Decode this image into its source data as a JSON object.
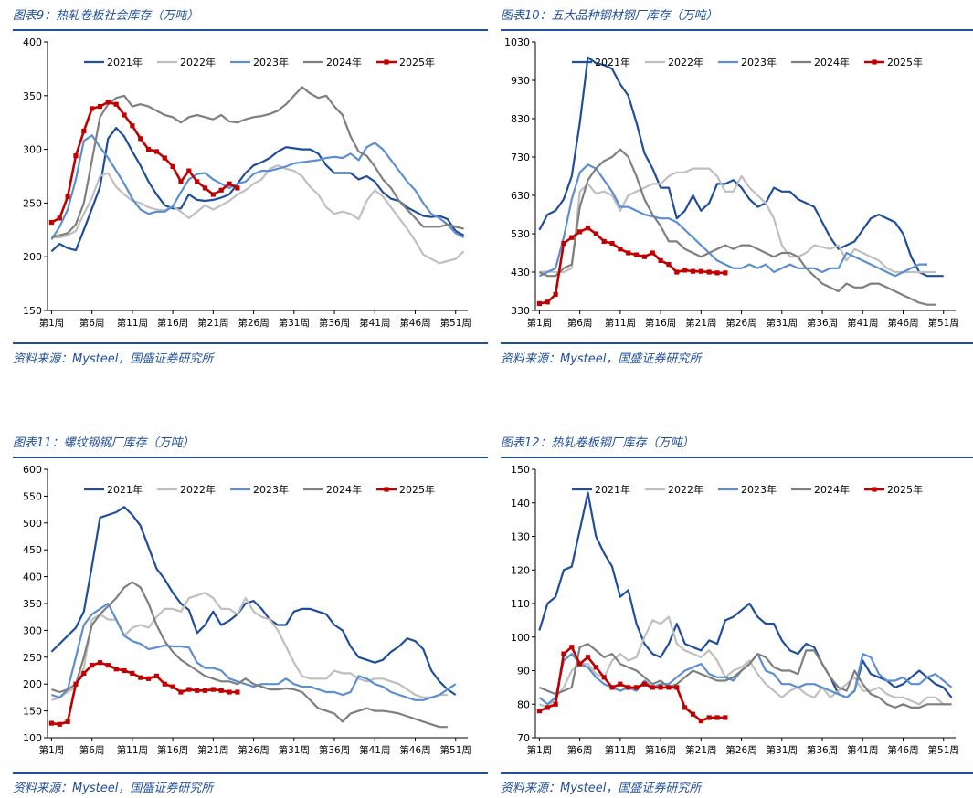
{
  "panels": [
    {
      "title": "图表9：热轧卷板社会库存（万吨）",
      "source": "资料来源：Mysteel，国盛证券研究所"
    },
    {
      "title": "图表10：五大品种钢材钢厂库存（万吨）",
      "source": "资料来源：Mysteel，国盛证券研究所"
    },
    {
      "title": "图表11：螺纹钢钢厂库存（万吨）",
      "source": "资料来源：Mysteel，国盛证券研究所"
    },
    {
      "title": "图表12：热轧卷板钢厂库存（万吨）",
      "source": "资料来源：Mysteel，国盛证券研究所"
    }
  ],
  "colors": {
    "y2021": "#1f4e9a",
    "y2022": "#bfbfbf",
    "y2023": "#5b8fd0",
    "y2024": "#7f7f7f",
    "y2025": "#c00000",
    "title": "#1f4e9a"
  },
  "chart_data": [
    {
      "type": "line",
      "title": "图表9：热轧卷板社会库存（万吨）",
      "x_tick_labels": [
        "第1周",
        "第6周",
        "第11周",
        "第16周",
        "第21周",
        "第26周",
        "第31周",
        "第36周",
        "第41周",
        "第46周",
        "第51周"
      ],
      "ylim": [
        150,
        400
      ],
      "yticks": [
        150,
        200,
        250,
        300,
        350,
        400
      ],
      "legend": "top",
      "series": [
        {
          "name": "2021年",
          "values": [
            205,
            212,
            208,
            206,
            225,
            245,
            265,
            310,
            320,
            312,
            298,
            285,
            270,
            258,
            248,
            245,
            245,
            258,
            253,
            252,
            253,
            255,
            258,
            268,
            278,
            285,
            288,
            292,
            298,
            302,
            301,
            300,
            300,
            296,
            285,
            278,
            278,
            278,
            272,
            275,
            270,
            260,
            254,
            252,
            246,
            242,
            238,
            237,
            238,
            235,
            224,
            220
          ]
        },
        {
          "name": "2022年",
          "values": [
            218,
            218,
            220,
            224,
            240,
            255,
            275,
            278,
            265,
            258,
            252,
            250,
            246,
            244,
            243,
            247,
            242,
            236,
            242,
            248,
            244,
            248,
            252,
            258,
            262,
            268,
            272,
            282,
            285,
            282,
            280,
            275,
            265,
            258,
            246,
            240,
            242,
            240,
            235,
            252,
            262,
            256,
            246,
            236,
            226,
            215,
            202,
            198,
            194,
            196,
            198,
            205
          ]
        },
        {
          "name": "2023年",
          "values": [
            216,
            228,
            244,
            272,
            308,
            313,
            302,
            292,
            280,
            268,
            254,
            244,
            240,
            242,
            242,
            247,
            260,
            272,
            277,
            278,
            272,
            268,
            264,
            268,
            270,
            277,
            280,
            280,
            282,
            284,
            287,
            288,
            289,
            290,
            292,
            293,
            292,
            296,
            290,
            302,
            306,
            300,
            290,
            280,
            270,
            262,
            250,
            240,
            236,
            230,
            222,
            218
          ]
        },
        {
          "name": "2024年",
          "values": [
            218,
            220,
            222,
            230,
            250,
            290,
            330,
            342,
            348,
            350,
            340,
            342,
            340,
            336,
            332,
            330,
            325,
            330,
            332,
            330,
            328,
            332,
            326,
            325,
            328,
            330,
            331,
            333,
            336,
            342,
            350,
            358,
            352,
            348,
            350,
            340,
            332,
            312,
            298,
            294,
            284,
            272,
            264,
            252,
            244,
            236,
            228,
            228,
            228,
            230,
            228,
            226
          ]
        },
        {
          "name": "2025年",
          "values": [
            232,
            236,
            256,
            294,
            317,
            338,
            340,
            344,
            342,
            332,
            322,
            310,
            300,
            298,
            292,
            284,
            270,
            280,
            270,
            264,
            258,
            262,
            268,
            264
          ]
        }
      ]
    },
    {
      "type": "line",
      "title": "图表10：五大品种钢材钢厂库存（万吨）",
      "x_tick_labels": [
        "第1周",
        "第6周",
        "第11周",
        "第16周",
        "第21周",
        "第26周",
        "第31周",
        "第36周",
        "第41周",
        "第46周",
        "第51周"
      ],
      "ylim": [
        330,
        1030
      ],
      "yticks": [
        330,
        430,
        530,
        630,
        730,
        830,
        930,
        1030
      ],
      "legend": "top",
      "series": [
        {
          "name": "2021年",
          "values": [
            540,
            580,
            590,
            620,
            680,
            820,
            990,
            975,
            970,
            960,
            920,
            890,
            820,
            740,
            700,
            650,
            650,
            570,
            590,
            630,
            590,
            610,
            660,
            660,
            670,
            650,
            620,
            600,
            610,
            650,
            640,
            640,
            620,
            610,
            600,
            560,
            520,
            490,
            500,
            510,
            540,
            570,
            580,
            570,
            560,
            530,
            470,
            430,
            420,
            420,
            420
          ]
        },
        {
          "name": "2022年",
          "values": [
            430,
            432,
            430,
            430,
            440,
            640,
            660,
            635,
            640,
            630,
            590,
            630,
            640,
            650,
            660,
            660,
            680,
            690,
            690,
            700,
            700,
            700,
            680,
            640,
            640,
            680,
            650,
            630,
            610,
            570,
            500,
            470,
            470,
            480,
            500,
            495,
            490,
            500,
            460,
            490,
            480,
            470,
            460,
            440,
            430,
            430,
            430,
            430,
            430,
            430
          ]
        },
        {
          "name": "2023年",
          "values": [
            420,
            430,
            440,
            520,
            620,
            690,
            710,
            700,
            670,
            640,
            600,
            600,
            590,
            580,
            575,
            570,
            570,
            560,
            540,
            520,
            500,
            480,
            460,
            450,
            440,
            440,
            450,
            440,
            450,
            430,
            440,
            450,
            440,
            440,
            440,
            430,
            440,
            440,
            480,
            470,
            460,
            450,
            440,
            430,
            420,
            430,
            440,
            450,
            450
          ]
        },
        {
          "name": "2024年",
          "values": [
            430,
            420,
            420,
            440,
            450,
            600,
            670,
            700,
            720,
            730,
            750,
            730,
            680,
            620,
            580,
            550,
            510,
            510,
            490,
            480,
            470,
            480,
            490,
            500,
            490,
            500,
            500,
            490,
            480,
            470,
            480,
            480,
            470,
            440,
            420,
            400,
            390,
            380,
            400,
            390,
            390,
            400,
            400,
            390,
            380,
            370,
            360,
            350,
            345,
            345
          ]
        },
        {
          "name": "2025年",
          "values": [
            348,
            352,
            372,
            505,
            520,
            535,
            545,
            530,
            510,
            505,
            490,
            480,
            475,
            470,
            480,
            460,
            450,
            430,
            435,
            432,
            432,
            430,
            428,
            428
          ]
        }
      ]
    },
    {
      "type": "line",
      "title": "图表11：螺纹钢钢厂库存（万吨）",
      "x_tick_labels": [
        "第1周",
        "第6周",
        "第11周",
        "第16周",
        "第21周",
        "第26周",
        "第31周",
        "第36周",
        "第41周",
        "第46周",
        "第51周"
      ],
      "ylim": [
        100,
        600
      ],
      "yticks": [
        100,
        150,
        200,
        250,
        300,
        350,
        400,
        450,
        500,
        550,
        600
      ],
      "legend": "top",
      "series": [
        {
          "name": "2021年",
          "values": [
            260,
            275,
            290,
            305,
            335,
            420,
            510,
            515,
            520,
            530,
            515,
            495,
            455,
            415,
            395,
            370,
            350,
            338,
            295,
            310,
            335,
            310,
            318,
            330,
            350,
            355,
            340,
            320,
            310,
            310,
            335,
            340,
            340,
            335,
            330,
            310,
            300,
            270,
            250,
            245,
            240,
            245,
            260,
            270,
            285,
            280,
            265,
            225,
            205,
            190,
            180
          ]
        },
        {
          "name": "2022年",
          "values": [
            170,
            175,
            185,
            195,
            230,
            320,
            330,
            320,
            320,
            290,
            305,
            310,
            305,
            325,
            340,
            340,
            335,
            360,
            365,
            370,
            360,
            340,
            340,
            330,
            360,
            335,
            325,
            320,
            300,
            270,
            240,
            215,
            210,
            210,
            210,
            225,
            220,
            220,
            210,
            205,
            210,
            210,
            205,
            200,
            190,
            180,
            175,
            175,
            180,
            180
          ]
        },
        {
          "name": "2023年",
          "values": [
            180,
            175,
            190,
            250,
            310,
            330,
            340,
            350,
            320,
            290,
            280,
            275,
            265,
            268,
            272,
            270,
            270,
            268,
            240,
            230,
            230,
            225,
            210,
            205,
            200,
            195,
            200,
            200,
            200,
            210,
            200,
            195,
            195,
            190,
            185,
            185,
            180,
            185,
            215,
            210,
            200,
            195,
            185,
            180,
            175,
            170,
            170,
            175,
            180,
            190,
            200
          ]
        },
        {
          "name": "2024年",
          "values": [
            190,
            185,
            190,
            200,
            250,
            310,
            330,
            345,
            360,
            380,
            390,
            380,
            350,
            310,
            280,
            260,
            245,
            235,
            225,
            215,
            210,
            205,
            205,
            200,
            210,
            200,
            195,
            190,
            190,
            192,
            190,
            185,
            170,
            155,
            150,
            145,
            130,
            145,
            150,
            155,
            150,
            150,
            148,
            145,
            140,
            135,
            130,
            125,
            120,
            120
          ]
        },
        {
          "name": "2025年",
          "values": [
            127,
            125,
            130,
            200,
            220,
            235,
            240,
            235,
            228,
            225,
            220,
            212,
            210,
            215,
            200,
            195,
            185,
            190,
            188,
            188,
            190,
            188,
            185,
            185
          ]
        }
      ]
    },
    {
      "type": "line",
      "title": "图表12：热轧卷板钢厂库存（万吨）",
      "x_tick_labels": [
        "第1周",
        "第6周",
        "第11周",
        "第16周",
        "第21周",
        "第26周",
        "第31周",
        "第36周",
        "第41周",
        "第46周",
        "第51周"
      ],
      "ylim": [
        70,
        150
      ],
      "yticks": [
        70,
        80,
        90,
        100,
        110,
        120,
        130,
        140,
        150
      ],
      "legend": "top",
      "series": [
        {
          "name": "2021年",
          "values": [
            102,
            110,
            112,
            120,
            121,
            132,
            143,
            130,
            125,
            121,
            112,
            114,
            104,
            98,
            95,
            94,
            98,
            104,
            98,
            97,
            96,
            99,
            98,
            105,
            106,
            108,
            110,
            106,
            104,
            104,
            99,
            96,
            95,
            98,
            97,
            92,
            88,
            83,
            82,
            84,
            93,
            89,
            88,
            87,
            85,
            86,
            88,
            90,
            88,
            86,
            85,
            82
          ]
        },
        {
          "name": "2022年",
          "values": [
            80,
            79,
            82,
            85,
            90,
            92,
            92,
            89,
            88,
            93,
            95,
            93,
            94,
            100,
            105,
            104,
            106,
            98,
            96,
            95,
            94,
            96,
            93,
            88,
            90,
            91,
            93,
            89,
            86,
            84,
            82,
            84,
            85,
            83,
            82,
            85,
            82,
            84,
            86,
            88,
            84,
            84,
            85,
            83,
            82,
            82,
            81,
            80,
            82,
            82,
            80,
            80
          ]
        },
        {
          "name": "2023年",
          "values": [
            82,
            80,
            82,
            93,
            95,
            92,
            91,
            88,
            86,
            85,
            84,
            85,
            84,
            87,
            85,
            86,
            86,
            88,
            90,
            91,
            92,
            89,
            88,
            88,
            87,
            90,
            92,
            95,
            90,
            89,
            86,
            86,
            85,
            86,
            86,
            85,
            84,
            83,
            82,
            84,
            95,
            94,
            89,
            87,
            87,
            88,
            86,
            86,
            88,
            89,
            87,
            85
          ]
        },
        {
          "name": "2024年",
          "values": [
            85,
            84,
            83,
            84,
            85,
            97,
            98,
            96,
            94,
            95,
            92,
            91,
            90,
            88,
            86,
            87,
            85,
            86,
            88,
            90,
            89,
            88,
            87,
            87,
            88,
            90,
            92,
            95,
            94,
            91,
            90,
            90,
            89,
            96,
            96,
            92,
            88,
            85,
            84,
            90,
            86,
            83,
            82,
            80,
            79,
            80,
            79,
            79,
            80,
            80,
            80,
            80
          ]
        },
        {
          "name": "2025年",
          "values": [
            78,
            79,
            80,
            95,
            97,
            92,
            94,
            91,
            88,
            85,
            86,
            85,
            85,
            86,
            85,
            85,
            85,
            85,
            79,
            77,
            75,
            76,
            76,
            76
          ]
        }
      ]
    }
  ]
}
